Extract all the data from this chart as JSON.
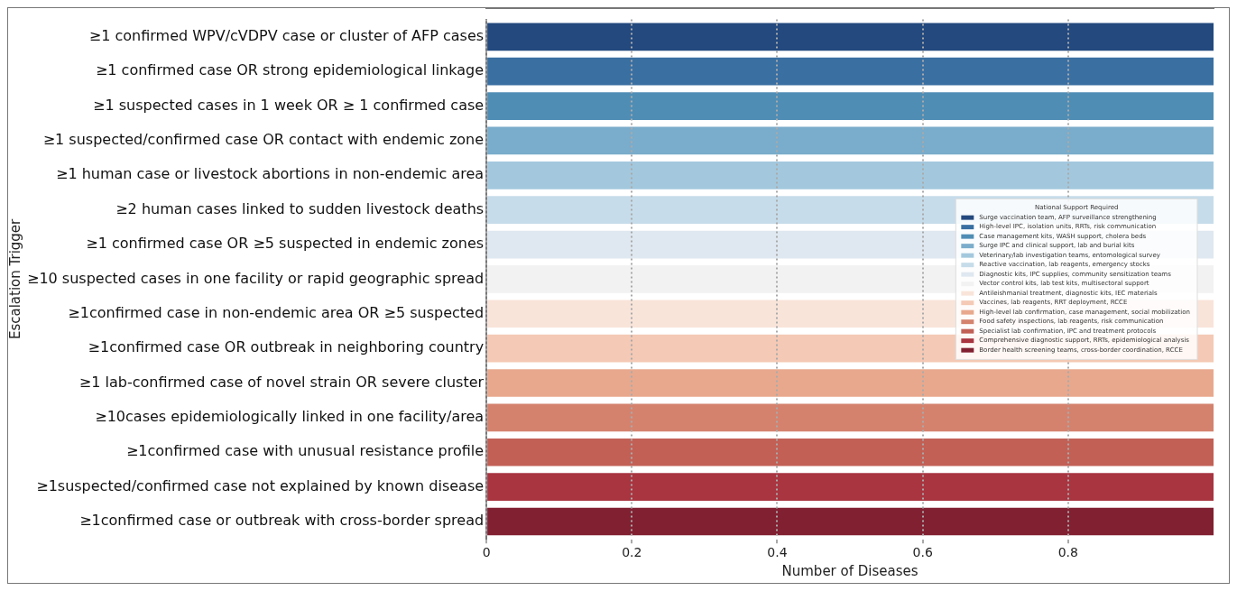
{
  "chart_data": {
    "type": "bar",
    "orientation": "horizontal",
    "xlabel": "Number of Diseases",
    "ylabel": "Escalation Trigger",
    "legend_title": "National Support Required",
    "legend": "right",
    "grid": "x",
    "line_style": "dotted",
    "xlim": [
      0,
      1
    ],
    "xticks": [
      0,
      0.2,
      0.4,
      0.6,
      0.8
    ],
    "categories": [
      "≥1 confirmed WPV/cVDPV case or cluster of AFP cases",
      "≥1 confirmed case OR strong epidemiological linkage",
      "≥1 suspected cases in 1 week OR ≥ 1 confirmed case",
      "≥1 suspected/confirmed case OR contact with endemic zone",
      "≥1 human case or livestock abortions in non-endemic area",
      "≥2 human cases linked to sudden livestock deaths",
      "≥1 confirmed case OR ≥5 suspected in endemic zones",
      "≥10 suspected cases in one facility or rapid geographic spread",
      "≥1confirmed case in non-endemic area OR ≥5 suspected",
      "≥1confirmed case OR outbreak in neighboring country",
      "≥1 lab-confirmed case of novel strain OR severe cluster",
      "≥10cases epidemiologically linked in one facility/area",
      "≥1confirmed case with unusual resistance profile",
      "≥1suspected/confirmed case not explained by known disease",
      "≥1confirmed case or outbreak with cross-border spread"
    ],
    "series": [
      {
        "name": "Surge vaccination team, AFP surveillance strengthening",
        "color": "#23497e",
        "values": [
          1,
          null,
          null,
          null,
          null,
          null,
          null,
          null,
          null,
          null,
          null,
          null,
          null,
          null,
          null
        ]
      },
      {
        "name": "High-level IPC, isolation units, RRTs, risk communication",
        "color": "#3a6fa2",
        "values": [
          null,
          1,
          null,
          null,
          null,
          null,
          null,
          null,
          null,
          null,
          null,
          null,
          null,
          null,
          null
        ]
      },
      {
        "name": "Case management kits, WASH support, cholera beds",
        "color": "#4f8db5",
        "values": [
          null,
          null,
          1,
          null,
          null,
          null,
          null,
          null,
          null,
          null,
          null,
          null,
          null,
          null,
          null
        ]
      },
      {
        "name": "Surge IPC and clinical support, lab and burial kits",
        "color": "#7aaccb",
        "values": [
          null,
          null,
          null,
          1,
          null,
          null,
          null,
          null,
          null,
          null,
          null,
          null,
          null,
          null,
          null
        ]
      },
      {
        "name": "Veterinary/lab investigation teams, entomological survey",
        "color": "#a3c8de",
        "values": [
          null,
          null,
          null,
          null,
          1,
          null,
          null,
          null,
          null,
          null,
          null,
          null,
          null,
          null,
          null
        ]
      },
      {
        "name": "Reactive vaccination, lab reagents, emergency stocks",
        "color": "#c6dcea",
        "values": [
          null,
          null,
          null,
          null,
          null,
          1,
          null,
          null,
          null,
          null,
          null,
          null,
          null,
          null,
          null
        ]
      },
      {
        "name": "Diagnostic kits, IPC supplies, community sensitization teams",
        "color": "#dfe8f0",
        "values": [
          null,
          null,
          null,
          null,
          null,
          null,
          1,
          null,
          null,
          null,
          null,
          null,
          null,
          null,
          null
        ]
      },
      {
        "name": "Vector control kits, lab test kits, multisectoral support",
        "color": "#f2f2f2",
        "values": [
          null,
          null,
          null,
          null,
          null,
          null,
          null,
          1,
          null,
          null,
          null,
          null,
          null,
          null,
          null
        ]
      },
      {
        "name": "Antileishmanial treatment, diagnostic kits, IEC materials",
        "color": "#f9e4da",
        "values": [
          null,
          null,
          null,
          null,
          null,
          null,
          null,
          null,
          1,
          null,
          null,
          null,
          null,
          null,
          null
        ]
      },
      {
        "name": "Vaccines, lab reagents, RRT deployment, RCCE",
        "color": "#f4c9b5",
        "values": [
          null,
          null,
          null,
          null,
          null,
          null,
          null,
          null,
          null,
          1,
          null,
          null,
          null,
          null,
          null
        ]
      },
      {
        "name": "High-level lab confirmation, case management, social mobilization",
        "color": "#e8a88d",
        "values": [
          null,
          null,
          null,
          null,
          null,
          null,
          null,
          null,
          null,
          null,
          1,
          null,
          null,
          null,
          null
        ]
      },
      {
        "name": "Food safety inspections, lab reagents, risk communication",
        "color": "#d4826e",
        "values": [
          null,
          null,
          null,
          null,
          null,
          null,
          null,
          null,
          null,
          null,
          null,
          1,
          null,
          null,
          null
        ]
      },
      {
        "name": "Specialist lab confirmation, IPC and treatment protocols",
        "color": "#c26056",
        "values": [
          null,
          null,
          null,
          null,
          null,
          null,
          null,
          null,
          null,
          null,
          null,
          null,
          1,
          null,
          null
        ]
      },
      {
        "name": "Comprehensive diagnostic support, RRTs, epidemiological analysis",
        "color": "#a83540",
        "values": [
          null,
          null,
          null,
          null,
          null,
          null,
          null,
          null,
          null,
          null,
          null,
          null,
          null,
          1,
          null
        ]
      },
      {
        "name": "Border health screening teams, cross-border coordination, RCCE",
        "color": "#812031",
        "values": [
          null,
          null,
          null,
          null,
          null,
          null,
          null,
          null,
          null,
          null,
          null,
          null,
          null,
          null,
          1
        ]
      }
    ]
  }
}
